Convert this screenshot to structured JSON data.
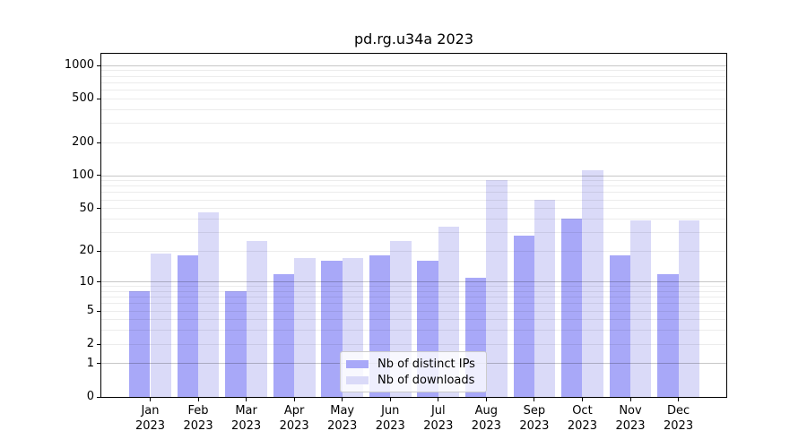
{
  "chart_data": {
    "type": "bar",
    "title": "pd.rg.u34a 2023",
    "categories": [
      "Jan",
      "Feb",
      "Mar",
      "Apr",
      "May",
      "Jun",
      "Jul",
      "Aug",
      "Sep",
      "Oct",
      "Nov",
      "Dec"
    ],
    "x_tick_year": "2023",
    "series": [
      {
        "name": "Nb of distinct IPs",
        "color": "#a8a8f8",
        "values": [
          8,
          18,
          8,
          12,
          16,
          18,
          16,
          11,
          28,
          40,
          18,
          12
        ]
      },
      {
        "name": "Nb of downloads",
        "color": "#dadaf8",
        "values": [
          19,
          46,
          25,
          17,
          17,
          25,
          34,
          91,
          60,
          113,
          39,
          39
        ]
      }
    ],
    "y_ticks": [
      0,
      1,
      2,
      5,
      10,
      20,
      50,
      100,
      200,
      500,
      1000
    ],
    "y_scale": "log10(1+v)",
    "ylim": [
      0,
      1281
    ],
    "xlabel": "",
    "ylabel": "",
    "grid": "horizontal major+minor",
    "legend_position": "lower center",
    "background_color": "#ffffff",
    "axis_color": "#000000",
    "gridline_major_color": "#c7c7c7",
    "gridline_minor_color": "#ebebeb"
  }
}
